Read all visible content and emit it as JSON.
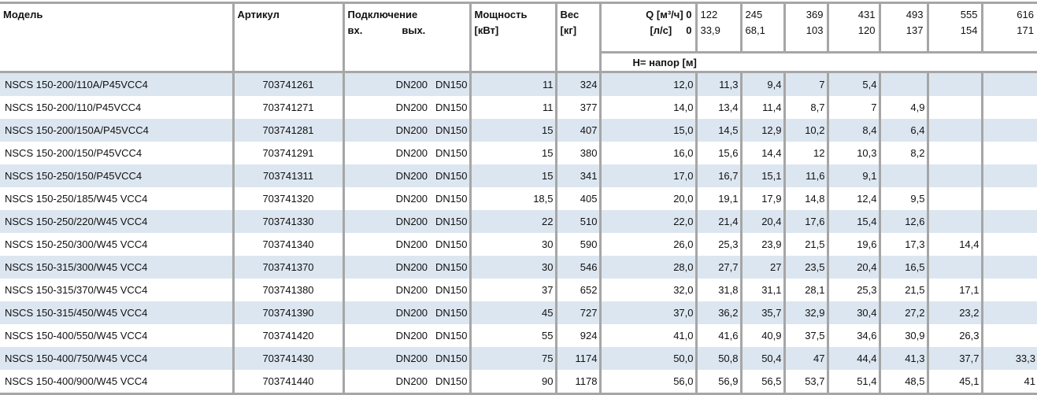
{
  "header": {
    "model": "Модель",
    "article": "Артикул",
    "connection": "Подключение",
    "conn_in": "вх.",
    "conn_out": "вых.",
    "power": "Мощность",
    "power_unit": "[кВт]",
    "weight": "Вес",
    "weight_unit": "[кг]",
    "q_m3h_label": "Q [м³/ч] 0",
    "q_ls_label": "[л/с]     0",
    "head_label": "H= напор [м]",
    "q_m3h": [
      "122",
      "245",
      "369",
      "431",
      "493",
      "555",
      "616"
    ],
    "q_ls": [
      "33,9",
      "68,1",
      "103",
      "120",
      "137",
      "154",
      "171"
    ]
  },
  "rows": [
    {
      "model": "NSCS 150-200/110A/P45VCC4",
      "article": "703741261",
      "in": "DN200",
      "out": "DN150",
      "power": "11",
      "weight": "324",
      "head": [
        "12,0",
        "11,3",
        "9,4",
        "7",
        "5,4",
        "",
        "",
        ""
      ]
    },
    {
      "model": "NSCS 150-200/110/P45VCC4",
      "article": "703741271",
      "in": "DN200",
      "out": "DN150",
      "power": "11",
      "weight": "377",
      "head": [
        "14,0",
        "13,4",
        "11,4",
        "8,7",
        "7",
        "4,9",
        "",
        ""
      ]
    },
    {
      "model": "NSCS 150-200/150A/P45VCC4",
      "article": "703741281",
      "in": "DN200",
      "out": "DN150",
      "power": "15",
      "weight": "407",
      "head": [
        "15,0",
        "14,5",
        "12,9",
        "10,2",
        "8,4",
        "6,4",
        "",
        ""
      ]
    },
    {
      "model": "NSCS 150-200/150/P45VCC4",
      "article": "703741291",
      "in": "DN200",
      "out": "DN150",
      "power": "15",
      "weight": "380",
      "head": [
        "16,0",
        "15,6",
        "14,4",
        "12",
        "10,3",
        "8,2",
        "",
        ""
      ]
    },
    {
      "model": "NSCS 150-250/150/P45VCC4",
      "article": "703741311",
      "in": "DN200",
      "out": "DN150",
      "power": "15",
      "weight": "341",
      "head": [
        "17,0",
        "16,7",
        "15,1",
        "11,6",
        "9,1",
        "",
        "",
        ""
      ]
    },
    {
      "model": "NSCS 150-250/185/W45 VCC4",
      "article": "703741320",
      "in": "DN200",
      "out": "DN150",
      "power": "18,5",
      "weight": "405",
      "head": [
        "20,0",
        "19,1",
        "17,9",
        "14,8",
        "12,4",
        "9,5",
        "",
        ""
      ]
    },
    {
      "model": "NSCS 150-250/220/W45 VCC4",
      "article": "703741330",
      "in": "DN200",
      "out": "DN150",
      "power": "22",
      "weight": "510",
      "head": [
        "22,0",
        "21,4",
        "20,4",
        "17,6",
        "15,4",
        "12,6",
        "",
        ""
      ]
    },
    {
      "model": "NSCS 150-250/300/W45 VCC4",
      "article": "703741340",
      "in": "DN200",
      "out": "DN150",
      "power": "30",
      "weight": "590",
      "head": [
        "26,0",
        "25,3",
        "23,9",
        "21,5",
        "19,6",
        "17,3",
        "14,4",
        ""
      ]
    },
    {
      "model": "NSCS 150-315/300/W45 VCC4",
      "article": "703741370",
      "in": "DN200",
      "out": "DN150",
      "power": "30",
      "weight": "546",
      "head": [
        "28,0",
        "27,7",
        "27",
        "23,5",
        "20,4",
        "16,5",
        "",
        ""
      ]
    },
    {
      "model": "NSCS 150-315/370/W45 VCC4",
      "article": "703741380",
      "in": "DN200",
      "out": "DN150",
      "power": "37",
      "weight": "652",
      "head": [
        "32,0",
        "31,8",
        "31,1",
        "28,1",
        "25,3",
        "21,5",
        "17,1",
        ""
      ]
    },
    {
      "model": "NSCS 150-315/450/W45 VCC4",
      "article": "703741390",
      "in": "DN200",
      "out": "DN150",
      "power": "45",
      "weight": "727",
      "head": [
        "37,0",
        "36,2",
        "35,7",
        "32,9",
        "30,4",
        "27,2",
        "23,2",
        ""
      ]
    },
    {
      "model": "NSCS 150-400/550/W45 VCC4",
      "article": "703741420",
      "in": "DN200",
      "out": "DN150",
      "power": "55",
      "weight": "924",
      "head": [
        "41,0",
        "41,6",
        "40,9",
        "37,5",
        "34,6",
        "30,9",
        "26,3",
        ""
      ]
    },
    {
      "model": "NSCS 150-400/750/W45 VCC4",
      "article": "703741430",
      "in": "DN200",
      "out": "DN150",
      "power": "75",
      "weight": "1174",
      "head": [
        "50,0",
        "50,8",
        "50,4",
        "47",
        "44,4",
        "41,3",
        "37,7",
        "33,3"
      ]
    },
    {
      "model": "NSCS 150-400/900/W45 VCC4",
      "article": "703741440",
      "in": "DN200",
      "out": "DN150",
      "power": "90",
      "weight": "1178",
      "head": [
        "56,0",
        "56,9",
        "56,5",
        "53,7",
        "51,4",
        "48,5",
        "45,1",
        "41"
      ]
    }
  ],
  "colors": {
    "row_stripe": "#dce6f0",
    "grid": "#a6a6a6"
  }
}
